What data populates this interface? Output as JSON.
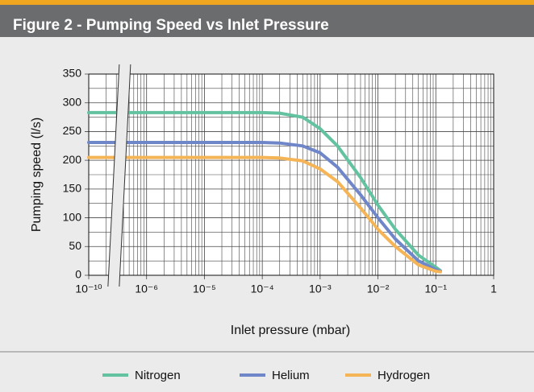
{
  "chart_data": {
    "type": "line",
    "title": "Figure 2 - Pumping Speed vs Inlet Pressure",
    "x_label": "Inlet pressure (mbar)",
    "y_label": "Pumping speed (l/s)",
    "x_log": true,
    "x_break": [
      1e-10,
      1e-06
    ],
    "xlim": [
      1e-10,
      1
    ],
    "xticks": [
      {
        "value": 1e-10,
        "label": "10⁻¹⁰"
      },
      {
        "value": 1e-06,
        "label": "10⁻⁶"
      },
      {
        "value": 1e-05,
        "label": "10⁻⁵"
      },
      {
        "value": 0.0001,
        "label": "10⁻⁴"
      },
      {
        "value": 0.001,
        "label": "10⁻³"
      },
      {
        "value": 0.01,
        "label": "10⁻²"
      },
      {
        "value": 0.1,
        "label": "10⁻¹"
      },
      1
    ],
    "ylim": [
      0,
      350
    ],
    "yticks": [
      0,
      50,
      100,
      150,
      200,
      250,
      300,
      350
    ],
    "y_minor_step": 25,
    "grid": true,
    "legend": "bottom",
    "x": [
      1e-10,
      0.0001,
      0.0002,
      0.0005,
      0.001,
      0.002,
      0.005,
      0.01,
      0.02,
      0.05,
      0.1,
      0.12
    ],
    "series": [
      {
        "name": "Nitrogen",
        "color": "#63c29f",
        "values": [
          283,
          283,
          282,
          275,
          255,
          225,
          170,
          122,
          80,
          35,
          14,
          8
        ]
      },
      {
        "name": "Helium",
        "color": "#6f86c8",
        "values": [
          231,
          231,
          230,
          225,
          213,
          188,
          140,
          100,
          63,
          25,
          10,
          7
        ]
      },
      {
        "name": "Hydrogen",
        "color": "#f5b456",
        "values": [
          205,
          205,
          204,
          199,
          185,
          163,
          117,
          80,
          50,
          18,
          7,
          6
        ]
      }
    ]
  }
}
